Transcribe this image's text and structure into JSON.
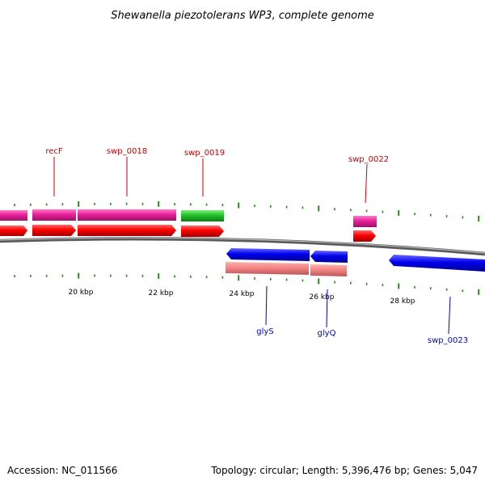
{
  "title": "Shewanella piezotolerans WP3, complete genome",
  "footer": {
    "accession": "Accession: NC_011566",
    "topology": "Topology: circular; Length: 5,396,476 bp; Genes: 5,047"
  },
  "axis": {
    "tick_labels": [
      "20 kbp",
      "22 kbp",
      "24 kbp",
      "26 kbp",
      "28 kbp"
    ]
  },
  "gene_labels": {
    "top": [
      "recF",
      "swp_0018",
      "swp_0019",
      "swp_0022"
    ],
    "bottom": [
      "glyS",
      "glyQ",
      "swp_0023"
    ]
  },
  "colors": {
    "forward_gene": "#ff0000",
    "reverse_gene": "#0000ff",
    "forward_cds_pink": "#e8209a",
    "forward_cds_green": "#22c02a",
    "reverse_cds_salmon": "#f08080",
    "backbone": "#808080",
    "tick": "#2a8a1a",
    "label_top": "#cc0000",
    "label_bottom": "#0000cc"
  }
}
